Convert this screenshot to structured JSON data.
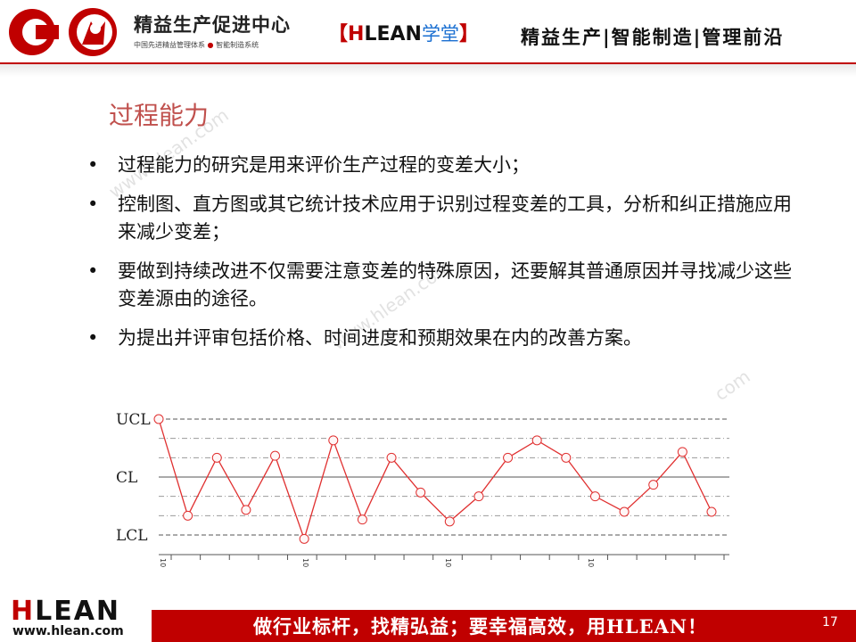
{
  "header": {
    "logo_text": "精益生产促进中心",
    "logo_subtitle_left": "中国先进精益管理体系",
    "logo_subtitle_right": "智能制造系统",
    "tag_open": "【",
    "tag_h": "H",
    "tag_lean": "LEAN",
    "tag_xuetang": "学堂",
    "tag_close": "】",
    "slogan": "精益生产|智能制造|管理前沿"
  },
  "slide": {
    "title": "过程能力",
    "bullets": [
      "过程能力的研究是用来评价生产过程的变差大小；",
      "控制图、直方图或其它统计技术应用于识别过程变差的工具，分析和纠正措施应用来减少变差；",
      "要做到持续改进不仅需要注意变差的特殊原因，还要解其普通原因并寻找减少这些变差源由的途径。",
      "为提出并评审包括价格、时间进度和预期效果在内的改善方案。"
    ],
    "bullet_symbol": "•"
  },
  "watermark": [
    "www.hlean.com",
    "www.hlean.com",
    "com"
  ],
  "chart_data": {
    "type": "line",
    "title": "",
    "y_labels": [
      "UCL",
      "CL",
      "LCL"
    ],
    "x_tick_labels": [
      "10",
      "10",
      "10",
      "10"
    ],
    "ylim": [
      -3,
      3
    ],
    "control_limits": {
      "UCL": 3,
      "CL": 0,
      "LCL": -3
    },
    "zone_lines": [
      2,
      1,
      -1,
      -2
    ],
    "series": [
      {
        "values": [
          3.0,
          -2.0,
          1.0,
          -1.7,
          1.1,
          -3.2,
          1.9,
          -2.2,
          1.0,
          -0.8,
          -2.3,
          -1.0,
          1.0,
          1.9,
          1.0,
          -1.0,
          -1.8,
          -0.4,
          1.3,
          -1.8
        ]
      }
    ],
    "colors": {
      "series": "#e03030",
      "limits": "#555555",
      "zones": "#999999"
    }
  },
  "footer": {
    "logo_left": "H",
    "logo_mid": "LEAN",
    "url": "www.hlean.com",
    "slogan": "做行业标杆，找精弘益；要幸福高效，用HLEAN！",
    "page_number": "17"
  },
  "colors": {
    "accent": "#c00000",
    "title": "#c0504d",
    "tag_blue": "#1a6fd1"
  }
}
